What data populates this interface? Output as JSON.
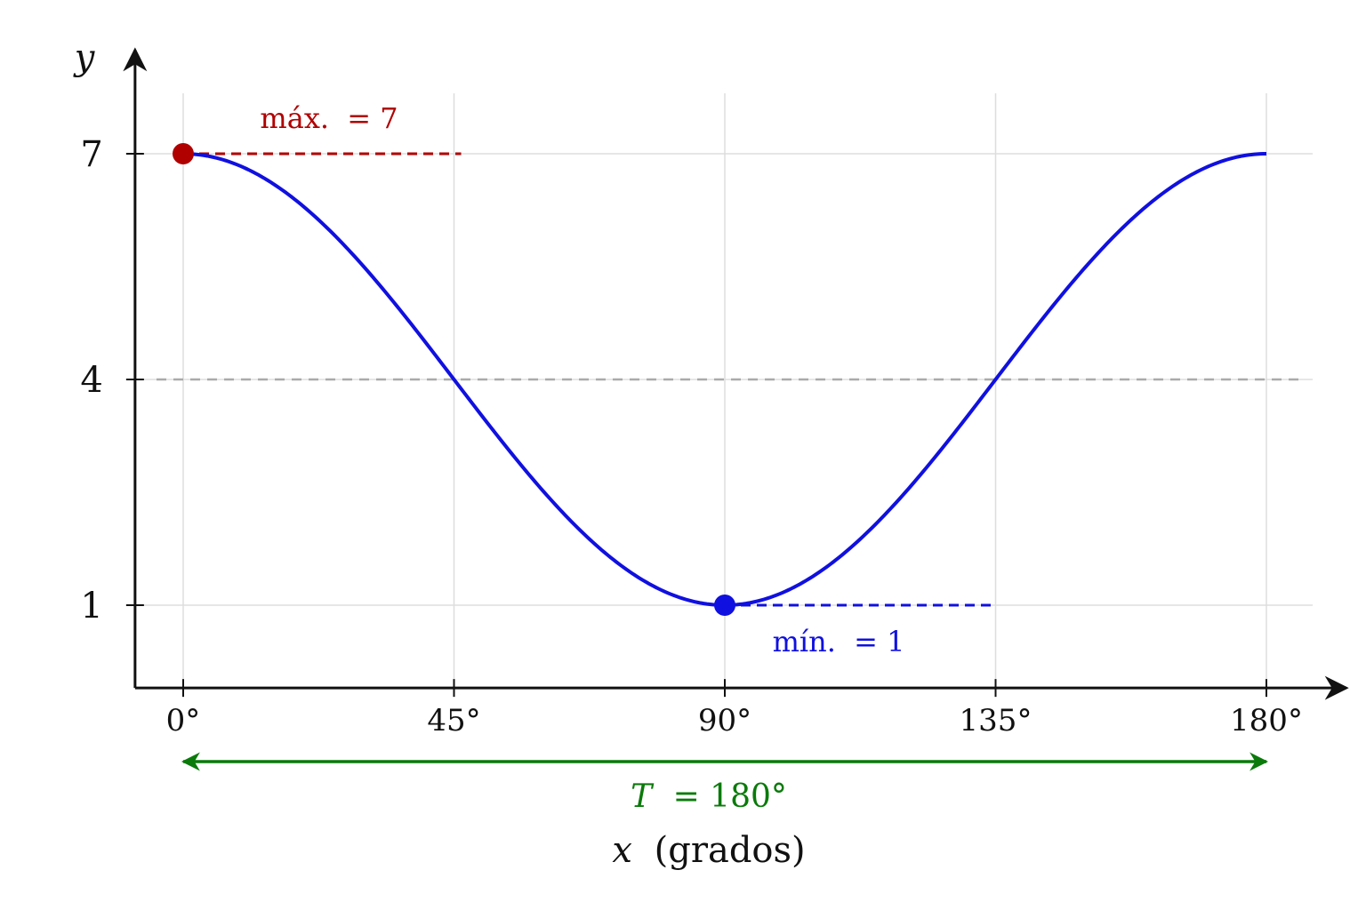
{
  "chart_data": {
    "type": "line",
    "xlabel_var": "x",
    "xlabel_unit": "(grados)",
    "ylabel": "y",
    "xlim": [
      -8,
      186
    ],
    "ylim": [
      -0.1,
      8.1
    ],
    "grid": true,
    "x_ticks": [
      0,
      45,
      90,
      135,
      180
    ],
    "x_tick_labels": [
      "0°",
      "45°",
      "90°",
      "135°",
      "180°"
    ],
    "y_ticks": [
      1,
      4,
      7
    ],
    "y_tick_labels": [
      "1",
      "4",
      "7"
    ],
    "series": [
      {
        "function": "y = 4 + 3·cos(2x)",
        "x": [
          0,
          15,
          30,
          45,
          60,
          75,
          90,
          105,
          120,
          135,
          150,
          165,
          180
        ],
        "values": [
          7,
          6.6,
          5.5,
          4,
          2.5,
          1.4,
          1,
          1.4,
          2.5,
          4,
          5.5,
          6.6,
          7
        ],
        "color": "#1010e0"
      }
    ],
    "midline": {
      "y": 4,
      "color": "#aaaaaa"
    },
    "max_point": {
      "x": 0,
      "y": 7,
      "label_prefix": "máx.",
      "label_eq": "= 7",
      "color": "#b00000",
      "dash_to_x": 45
    },
    "min_point": {
      "x": 90,
      "y": 1,
      "label_prefix": "mín.",
      "label_eq": "= 1",
      "color": "#1010e0",
      "dash_to_x": 135
    },
    "period": {
      "from": 0,
      "to": 180,
      "label_var": "T",
      "label_eq": "= 180°",
      "color": "#0a7a0a"
    }
  }
}
